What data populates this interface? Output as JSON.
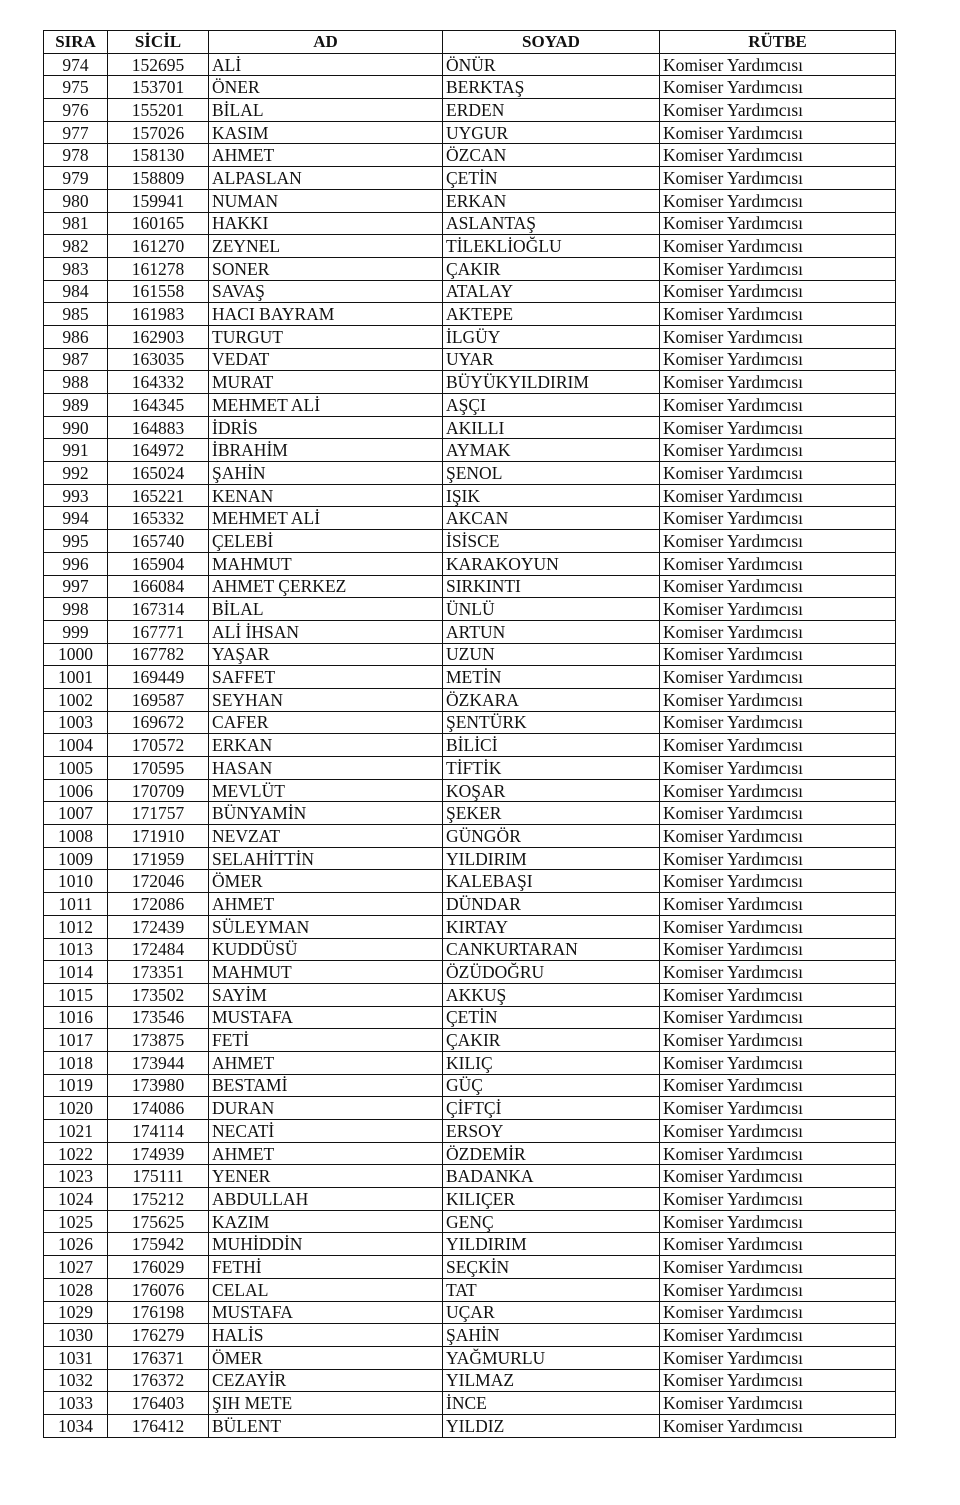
{
  "headers": {
    "sira": "SIRA",
    "sicil": "SİCİL",
    "ad": "AD",
    "soyad": "SOYAD",
    "rutbe": "RÜTBE"
  },
  "rows": [
    [
      "974",
      "152695",
      "ALİ",
      "ÖNÜR",
      "Komiser Yardımcısı"
    ],
    [
      "975",
      "153701",
      "ÖNER",
      "BERKTAŞ",
      "Komiser Yardımcısı"
    ],
    [
      "976",
      "155201",
      "BİLAL",
      "ERDEN",
      "Komiser Yardımcısı"
    ],
    [
      "977",
      "157026",
      "KASIM",
      "UYGUR",
      "Komiser Yardımcısı"
    ],
    [
      "978",
      "158130",
      "AHMET",
      "ÖZCAN",
      "Komiser Yardımcısı"
    ],
    [
      "979",
      "158809",
      "ALPASLAN",
      "ÇETİN",
      "Komiser Yardımcısı"
    ],
    [
      "980",
      "159941",
      "NUMAN",
      "ERKAN",
      "Komiser Yardımcısı"
    ],
    [
      "981",
      "160165",
      "HAKKI",
      "ASLANTAŞ",
      "Komiser Yardımcısı"
    ],
    [
      "982",
      "161270",
      "ZEYNEL",
      "TİLEKLİOĞLU",
      "Komiser Yardımcısı"
    ],
    [
      "983",
      "161278",
      "SONER",
      "ÇAKIR",
      "Komiser Yardımcısı"
    ],
    [
      "984",
      "161558",
      "SAVAŞ",
      "ATALAY",
      "Komiser Yardımcısı"
    ],
    [
      "985",
      "161983",
      "HACI BAYRAM",
      "AKTEPE",
      "Komiser Yardımcısı"
    ],
    [
      "986",
      "162903",
      "TURGUT",
      "İLGÜY",
      "Komiser Yardımcısı"
    ],
    [
      "987",
      "163035",
      "VEDAT",
      "UYAR",
      "Komiser Yardımcısı"
    ],
    [
      "988",
      "164332",
      "MURAT",
      "BÜYÜKYILDIRIM",
      "Komiser Yardımcısı"
    ],
    [
      "989",
      "164345",
      "MEHMET ALİ",
      "AŞÇI",
      "Komiser Yardımcısı"
    ],
    [
      "990",
      "164883",
      "İDRİS",
      "AKILLI",
      "Komiser Yardımcısı"
    ],
    [
      "991",
      "164972",
      "İBRAHİM",
      "AYMAK",
      "Komiser Yardımcısı"
    ],
    [
      "992",
      "165024",
      "ŞAHİN",
      "ŞENOL",
      "Komiser Yardımcısı"
    ],
    [
      "993",
      "165221",
      "KENAN",
      "IŞIK",
      "Komiser Yardımcısı"
    ],
    [
      "994",
      "165332",
      "MEHMET ALİ",
      "AKCAN",
      "Komiser Yardımcısı"
    ],
    [
      "995",
      "165740",
      "ÇELEBİ",
      "İSİSCE",
      "Komiser Yardımcısı"
    ],
    [
      "996",
      "165904",
      "MAHMUT",
      "KARAKOYUN",
      "Komiser Yardımcısı"
    ],
    [
      "997",
      "166084",
      "AHMET ÇERKEZ",
      "SIRKINTI",
      "Komiser Yardımcısı"
    ],
    [
      "998",
      "167314",
      "BİLAL",
      "ÜNLÜ",
      "Komiser Yardımcısı"
    ],
    [
      "999",
      "167771",
      "ALİ İHSAN",
      "ARTUN",
      "Komiser Yardımcısı"
    ],
    [
      "1000",
      "167782",
      "YAŞAR",
      "UZUN",
      "Komiser Yardımcısı"
    ],
    [
      "1001",
      "169449",
      "SAFFET",
      "METİN",
      "Komiser Yardımcısı"
    ],
    [
      "1002",
      "169587",
      "SEYHAN",
      "ÖZKARA",
      "Komiser Yardımcısı"
    ],
    [
      "1003",
      "169672",
      "CAFER",
      "ŞENTÜRK",
      "Komiser Yardımcısı"
    ],
    [
      "1004",
      "170572",
      "ERKAN",
      "BİLİCİ",
      "Komiser Yardımcısı"
    ],
    [
      "1005",
      "170595",
      "HASAN",
      "TİFTİK",
      "Komiser Yardımcısı"
    ],
    [
      "1006",
      "170709",
      "MEVLÜT",
      "KOŞAR",
      "Komiser Yardımcısı"
    ],
    [
      "1007",
      "171757",
      "BÜNYAMİN",
      "ŞEKER",
      "Komiser Yardımcısı"
    ],
    [
      "1008",
      "171910",
      "NEVZAT",
      "GÜNGÖR",
      "Komiser Yardımcısı"
    ],
    [
      "1009",
      "171959",
      "SELAHİTTİN",
      "YILDIRIM",
      "Komiser Yardımcısı"
    ],
    [
      "1010",
      "172046",
      "ÖMER",
      "KALEBAŞI",
      "Komiser Yardımcısı"
    ],
    [
      "1011",
      "172086",
      "AHMET",
      "DÜNDAR",
      "Komiser Yardımcısı"
    ],
    [
      "1012",
      "172439",
      "SÜLEYMAN",
      "KIRTAY",
      "Komiser Yardımcısı"
    ],
    [
      "1013",
      "172484",
      "KUDDÜSÜ",
      "CANKURTARAN",
      "Komiser Yardımcısı"
    ],
    [
      "1014",
      "173351",
      "MAHMUT",
      "ÖZÜDOĞRU",
      "Komiser Yardımcısı"
    ],
    [
      "1015",
      "173502",
      "SAYİM",
      "AKKUŞ",
      "Komiser Yardımcısı"
    ],
    [
      "1016",
      "173546",
      "MUSTAFA",
      "ÇETİN",
      "Komiser Yardımcısı"
    ],
    [
      "1017",
      "173875",
      "FETİ",
      "ÇAKIR",
      "Komiser Yardımcısı"
    ],
    [
      "1018",
      "173944",
      "AHMET",
      "KILIÇ",
      "Komiser Yardımcısı"
    ],
    [
      "1019",
      "173980",
      "BESTAMİ",
      "GÜÇ",
      "Komiser Yardımcısı"
    ],
    [
      "1020",
      "174086",
      "DURAN",
      "ÇİFTÇİ",
      "Komiser Yardımcısı"
    ],
    [
      "1021",
      "174114",
      "NECATİ",
      "ERSOY",
      "Komiser Yardımcısı"
    ],
    [
      "1022",
      "174939",
      "AHMET",
      "ÖZDEMİR",
      "Komiser Yardımcısı"
    ],
    [
      "1023",
      "175111",
      "YENER",
      "BADANKA",
      "Komiser Yardımcısı"
    ],
    [
      "1024",
      "175212",
      "ABDULLAH",
      "KILIÇER",
      "Komiser Yardımcısı"
    ],
    [
      "1025",
      "175625",
      "KAZIM",
      "GENÇ",
      "Komiser Yardımcısı"
    ],
    [
      "1026",
      "175942",
      "MUHİDDİN",
      "YILDIRIM",
      "Komiser Yardımcısı"
    ],
    [
      "1027",
      "176029",
      "FETHİ",
      "SEÇKİN",
      "Komiser Yardımcısı"
    ],
    [
      "1028",
      "176076",
      "CELAL",
      "TAT",
      "Komiser Yardımcısı"
    ],
    [
      "1029",
      "176198",
      "MUSTAFA",
      "UÇAR",
      "Komiser Yardımcısı"
    ],
    [
      "1030",
      "176279",
      "HALİS",
      "ŞAHİN",
      "Komiser Yardımcısı"
    ],
    [
      "1031",
      "176371",
      "ÖMER",
      "YAĞMURLU",
      "Komiser Yardımcısı"
    ],
    [
      "1032",
      "176372",
      "CEZAYİR",
      "YILMAZ",
      "Komiser Yardımcısı"
    ],
    [
      "1033",
      "176403",
      "ŞIH METE",
      "İNCE",
      "Komiser Yardımcısı"
    ],
    [
      "1034",
      "176412",
      "BÜLENT",
      "YILDIZ",
      "Komiser Yardımcısı"
    ]
  ]
}
